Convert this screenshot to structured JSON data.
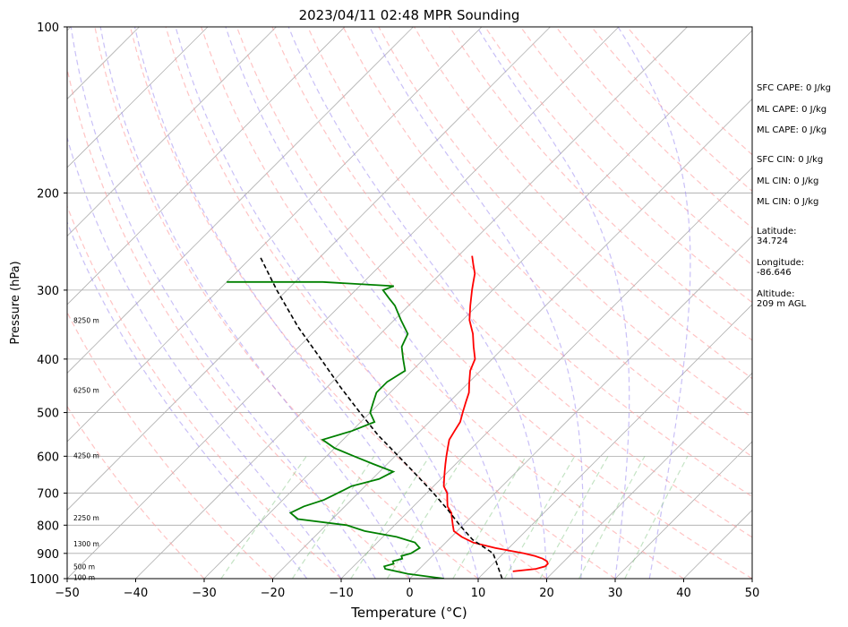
{
  "chart_data": {
    "type": "skew-t",
    "title": "2023/04/11 02:48 MPR Sounding",
    "xlabel": "Temperature (°C)",
    "ylabel": "Pressure (hPa)",
    "xlim": [
      -50,
      50
    ],
    "ylim_pressure_hPa": [
      1000,
      100
    ],
    "pressure_scale": "log",
    "x_ticks": [
      -50,
      -40,
      -30,
      -20,
      -10,
      0,
      10,
      20,
      30,
      40,
      50
    ],
    "y_ticks": [
      1000,
      900,
      800,
      700,
      600,
      500,
      400,
      300,
      200,
      100
    ],
    "grid": true,
    "skew_degrees": 45,
    "series": [
      {
        "name": "Temperature",
        "color": "#ff0000",
        "points": [
          [
            970,
            14
          ],
          [
            960,
            17
          ],
          [
            950,
            18
          ],
          [
            940,
            18
          ],
          [
            930,
            17.5
          ],
          [
            920,
            16.5
          ],
          [
            910,
            15
          ],
          [
            900,
            13
          ],
          [
            880,
            8
          ],
          [
            860,
            4
          ],
          [
            840,
            1.5
          ],
          [
            820,
            -0.5
          ],
          [
            800,
            -1.5
          ],
          [
            780,
            -2.5
          ],
          [
            760,
            -3.5
          ],
          [
            740,
            -5
          ],
          [
            720,
            -6
          ],
          [
            700,
            -7
          ],
          [
            680,
            -8.5
          ],
          [
            660,
            -9.5
          ],
          [
            640,
            -10.5
          ],
          [
            620,
            -11.5
          ],
          [
            600,
            -12.5
          ],
          [
            580,
            -13.5
          ],
          [
            560,
            -14.5
          ],
          [
            540,
            -15
          ],
          [
            520,
            -15.5
          ],
          [
            500,
            -16.5
          ],
          [
            480,
            -17.5
          ],
          [
            460,
            -18.5
          ],
          [
            440,
            -20
          ],
          [
            420,
            -21.5
          ],
          [
            400,
            -22.5
          ],
          [
            380,
            -24.5
          ],
          [
            360,
            -26.5
          ],
          [
            340,
            -29
          ],
          [
            320,
            -31
          ],
          [
            300,
            -33
          ],
          [
            290,
            -34
          ],
          [
            280,
            -35
          ],
          [
            270,
            -36.5
          ],
          [
            260,
            -38
          ]
        ]
      },
      {
        "name": "Dewpoint",
        "color": "#008000",
        "points": [
          [
            1000,
            5
          ],
          [
            980,
            -1
          ],
          [
            960,
            -5
          ],
          [
            950,
            -5.5
          ],
          [
            940,
            -4.5
          ],
          [
            930,
            -5
          ],
          [
            920,
            -4
          ],
          [
            910,
            -4.5
          ],
          [
            900,
            -3.5
          ],
          [
            880,
            -3
          ],
          [
            860,
            -4.5
          ],
          [
            840,
            -8
          ],
          [
            820,
            -13.5
          ],
          [
            800,
            -17
          ],
          [
            780,
            -25
          ],
          [
            760,
            -27
          ],
          [
            740,
            -26
          ],
          [
            720,
            -24
          ],
          [
            700,
            -23
          ],
          [
            680,
            -22
          ],
          [
            660,
            -19
          ],
          [
            640,
            -18
          ],
          [
            620,
            -22
          ],
          [
            600,
            -26
          ],
          [
            580,
            -30
          ],
          [
            560,
            -33
          ],
          [
            540,
            -30
          ],
          [
            520,
            -28
          ],
          [
            500,
            -30
          ],
          [
            480,
            -31
          ],
          [
            460,
            -32
          ],
          [
            440,
            -32
          ],
          [
            420,
            -31
          ],
          [
            400,
            -33
          ],
          [
            380,
            -35
          ],
          [
            360,
            -36
          ],
          [
            340,
            -39
          ],
          [
            320,
            -42
          ],
          [
            310,
            -44
          ],
          [
            300,
            -46
          ],
          [
            295,
            -45
          ],
          [
            290,
            -56
          ],
          [
            290,
            -70
          ]
        ]
      },
      {
        "name": "Parcel",
        "color": "#000000",
        "style": "dashed",
        "points": [
          [
            1000,
            13.5
          ],
          [
            900,
            8.5
          ],
          [
            850,
            3.5
          ],
          [
            800,
            -0.5
          ],
          [
            750,
            -4.5
          ],
          [
            700,
            -9
          ],
          [
            650,
            -14
          ],
          [
            600,
            -19.5
          ],
          [
            550,
            -25.5
          ],
          [
            500,
            -31.5
          ],
          [
            450,
            -38
          ],
          [
            400,
            -45
          ],
          [
            350,
            -53
          ],
          [
            300,
            -61.5
          ],
          [
            260,
            -69
          ]
        ]
      }
    ],
    "dry_adiabats_theta_C": [
      -30,
      -20,
      -10,
      0,
      10,
      20,
      30,
      40,
      50,
      60,
      70,
      80,
      90,
      100,
      110,
      120,
      130,
      140,
      150,
      160
    ],
    "moist_adiabats_start_C": [
      -15,
      -10,
      -5,
      0,
      5,
      10,
      15,
      20,
      25,
      30,
      35
    ],
    "mixing_ratios_g_per_kg": [
      0.4,
      1,
      2,
      3,
      6,
      10,
      14,
      20,
      30
    ],
    "height_labels": [
      {
        "text": "100 m",
        "p": 994
      },
      {
        "text": "500 m",
        "p": 950
      },
      {
        "text": "1300 m",
        "p": 865
      },
      {
        "text": "2250 m",
        "p": 775
      },
      {
        "text": "4250 m",
        "p": 598
      },
      {
        "text": "6250 m",
        "p": 455
      },
      {
        "text": "8250 m",
        "p": 340
      }
    ]
  },
  "info_panel": {
    "sfc_cape": "SFC CAPE: 0 J/kg",
    "ml_cape_1": "ML CAPE: 0 J/kg",
    "ml_cape_2": "ML CAPE: 0 J/kg",
    "sfc_cin": "SFC CIN: 0 J/kg",
    "ml_cin_1": "ML CIN: 0 J/kg",
    "ml_cin_2": "ML CIN: 0 J/kg",
    "latitude": "Latitude:\n34.724",
    "longitude": "Longitude:\n-86.646",
    "altitude": "Altitude:\n209 m AGL"
  }
}
